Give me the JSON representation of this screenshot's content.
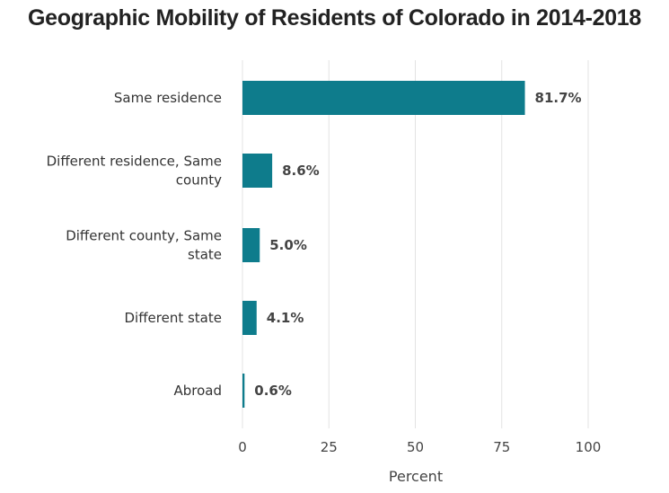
{
  "chart_data": {
    "type": "bar",
    "orientation": "horizontal",
    "title": "Geographic Mobility of Residents of Colorado in 2014-2018",
    "categories": [
      [
        "Same residence"
      ],
      [
        "Different residence, Same",
        "county"
      ],
      [
        "Different county, Same",
        "state"
      ],
      [
        "Different state"
      ],
      [
        "Abroad"
      ]
    ],
    "values": [
      81.7,
      8.6,
      5.0,
      4.1,
      0.6
    ],
    "value_labels": [
      "81.7%",
      "8.6%",
      "5.0%",
      "4.1%",
      "0.6%"
    ],
    "xlabel": "Percent",
    "xlim": [
      0,
      100
    ],
    "xticks": [
      0,
      25,
      50,
      75,
      100
    ],
    "grid": "vertical",
    "bar_color": "#0e7c8c"
  }
}
